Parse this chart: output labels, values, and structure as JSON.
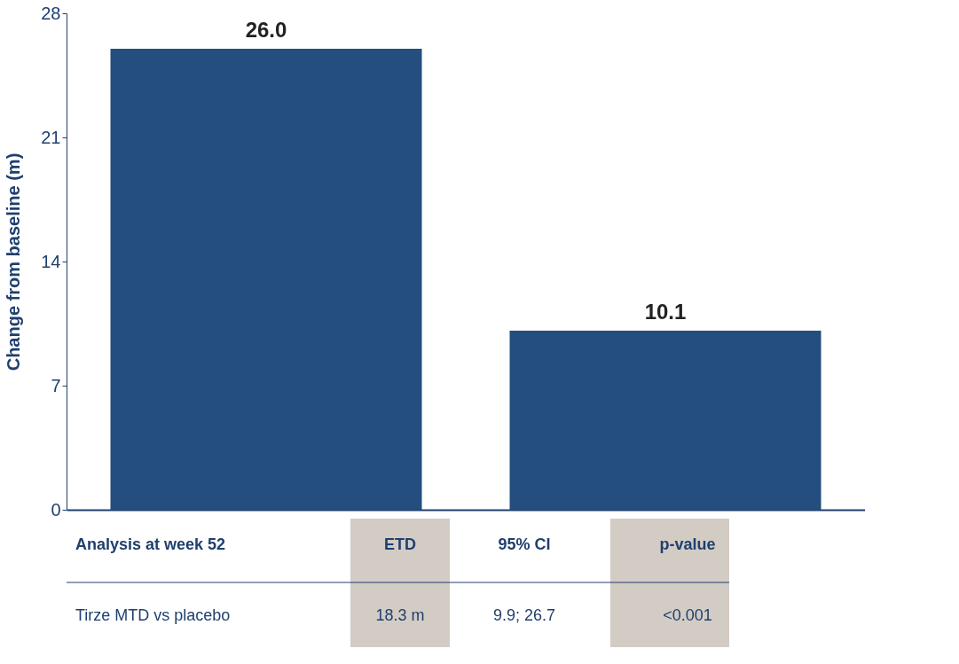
{
  "chart_data": {
    "type": "bar",
    "ylabel": "Change from baseline (m)",
    "categories": [
      null,
      null
    ],
    "values": [
      26.0,
      10.1
    ],
    "color": "#234e7d",
    "ylim": [
      0,
      28
    ],
    "yticks": [
      0,
      7,
      14,
      21,
      28
    ],
    "grid": false,
    "value_labels": [
      "26.0",
      "10.1"
    ],
    "annotations": [
      "Analysis at week 52",
      "ETD",
      "95% CI",
      "p-value",
      "Tirze MTD vs placebo",
      "18.3 m",
      "9.9; 26.7",
      "<0.001"
    ]
  }
}
